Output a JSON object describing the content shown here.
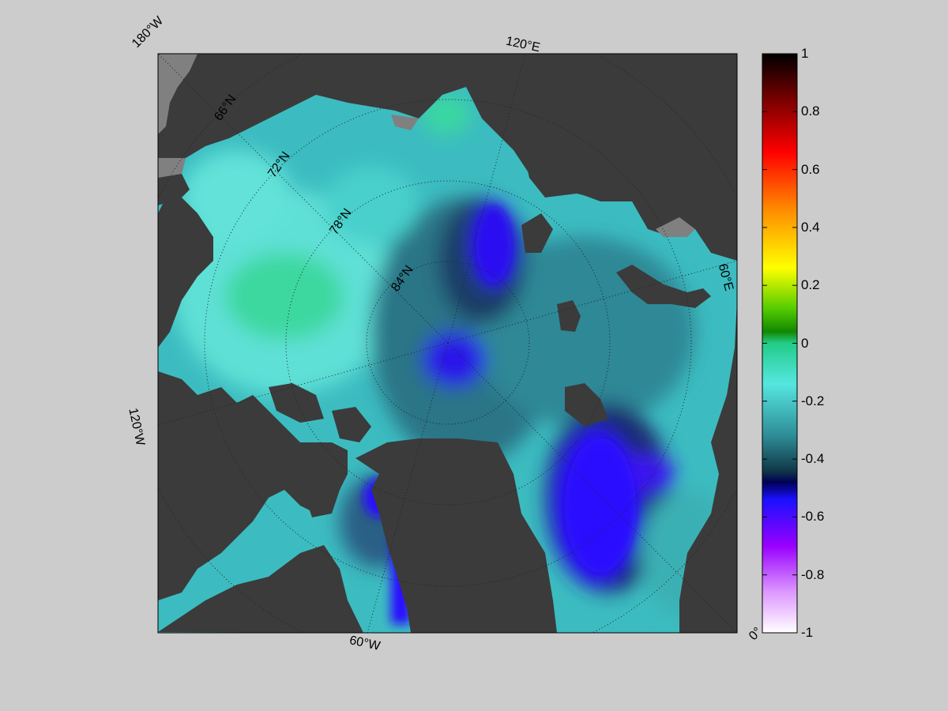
{
  "map": {
    "longitude_labels": [
      "180°W",
      "120°E",
      "60°E",
      "0°",
      "60°W",
      "120°W"
    ],
    "latitude_labels": [
      "66°N",
      "72°N",
      "78°N",
      "84°N"
    ],
    "colors": {
      "land": "#3b3b3b",
      "no_data": "#808080",
      "ocean_low_neg": "#2a5a68",
      "ocean_mid": "#3cb9b9",
      "ocean_high": "#42d8a4",
      "strong_neg": "#1e10e6"
    }
  },
  "colorbar": {
    "ticks": [
      "1",
      "0.8",
      "0.6",
      "0.4",
      "0.2",
      "0",
      "-0.2",
      "-0.4",
      "-0.6",
      "-0.8",
      "-1"
    ],
    "range": [
      -1,
      1
    ],
    "stops": [
      "#000000",
      "#7a0000",
      "#ff0000",
      "#ff8c00",
      "#ffff00",
      "#22aa00",
      "#00cc88",
      "#44dddd",
      "#1f6a78",
      "#0a0a66",
      "#2200ff",
      "#9a00ff",
      "#ffffff"
    ]
  }
}
